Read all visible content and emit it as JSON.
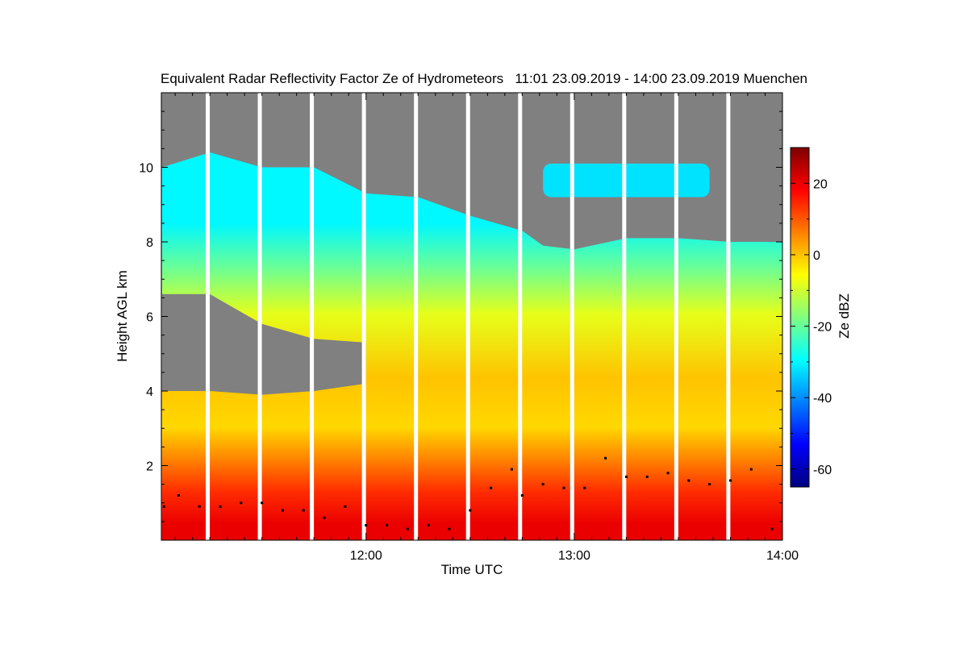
{
  "chart_data": {
    "type": "heatmap",
    "title": "Equivalent Radar Reflectivity Factor Ze of Hydrometeors   11:01 23.09.2019 - 14:00 23.09.2019 Muenchen",
    "xlabel": "Time UTC",
    "ylabel": "Height AGL km",
    "x_range_hours": [
      11.017,
      14.0
    ],
    "x_ticks": [
      {
        "value": 12.0,
        "label": "12:00"
      },
      {
        "value": 13.0,
        "label": "13:00"
      },
      {
        "value": 14.0,
        "label": "14:00"
      }
    ],
    "ylim": [
      0,
      12
    ],
    "y_ticks": [
      {
        "value": 2,
        "label": "2"
      },
      {
        "value": 4,
        "label": "4"
      },
      {
        "value": 6,
        "label": "6"
      },
      {
        "value": 8,
        "label": "8"
      },
      {
        "value": 10,
        "label": "10"
      }
    ],
    "colorbar": {
      "label": "Ze dBZ",
      "range": [
        -65,
        30
      ],
      "ticks": [
        {
          "value": 20,
          "label": "20"
        },
        {
          "value": 0,
          "label": "0"
        },
        {
          "value": -20,
          "label": "-20"
        },
        {
          "value": -40,
          "label": "-40"
        },
        {
          "value": -60,
          "label": "-60"
        }
      ],
      "colormap": [
        "#00007f",
        "#0000ff",
        "#0080ff",
        "#00ffff",
        "#80ff80",
        "#ffff00",
        "#ff8000",
        "#ff0000",
        "#7f0000"
      ]
    },
    "no_echo_color": "#808080",
    "data_gaps_hours": [
      11.24,
      11.49,
      11.74,
      11.99,
      12.24,
      12.49,
      12.74,
      12.99,
      13.24,
      13.49,
      13.74
    ],
    "cloud_top_km": [
      [
        11.02,
        10.0
      ],
      [
        11.25,
        10.4
      ],
      [
        11.5,
        10.0
      ],
      [
        11.75,
        10.0
      ],
      [
        12.0,
        9.3
      ],
      [
        12.25,
        9.2
      ],
      [
        12.5,
        8.7
      ],
      [
        12.75,
        8.3
      ],
      [
        12.85,
        7.9
      ],
      [
        13.0,
        7.8
      ],
      [
        13.25,
        8.1
      ],
      [
        13.5,
        8.1
      ],
      [
        13.75,
        8.0
      ],
      [
        14.0,
        8.0
      ]
    ],
    "clear_layer_bottom_km": [
      [
        11.02,
        4.0
      ],
      [
        11.25,
        4.0
      ],
      [
        11.5,
        3.9
      ],
      [
        11.75,
        4.0
      ],
      [
        12.0,
        4.2
      ]
    ],
    "clear_layer_top_km": [
      [
        11.02,
        6.6
      ],
      [
        11.25,
        6.6
      ],
      [
        11.5,
        5.8
      ],
      [
        11.75,
        5.4
      ],
      [
        12.0,
        5.3
      ]
    ],
    "upper_cloud_band_km": {
      "start_hour": 12.85,
      "end_hour": 13.65,
      "base": 9.2,
      "top": 10.1
    },
    "ze_profile_dbz": [
      {
        "height_km": 0.5,
        "ze": 20
      },
      {
        "height_km": 1.5,
        "ze": 14
      },
      {
        "height_km": 2.5,
        "ze": 6
      },
      {
        "height_km": 3.5,
        "ze": -2
      },
      {
        "height_km": 5.0,
        "ze": 0
      },
      {
        "height_km": 7.0,
        "ze": -8
      },
      {
        "height_km": 8.5,
        "ze": -20
      },
      {
        "height_km": 9.8,
        "ze": -30
      }
    ],
    "cloud_base_km": [
      [
        11.03,
        0.9
      ],
      [
        11.1,
        1.2
      ],
      [
        11.2,
        0.9
      ],
      [
        11.3,
        0.9
      ],
      [
        11.4,
        1.0
      ],
      [
        11.5,
        1.0
      ],
      [
        11.6,
        0.8
      ],
      [
        11.7,
        0.8
      ],
      [
        11.8,
        0.6
      ],
      [
        11.9,
        0.9
      ],
      [
        12.0,
        0.4
      ],
      [
        12.1,
        0.4
      ],
      [
        12.2,
        0.3
      ],
      [
        12.3,
        0.4
      ],
      [
        12.4,
        0.3
      ],
      [
        12.5,
        0.8
      ],
      [
        12.6,
        1.4
      ],
      [
        12.7,
        1.9
      ],
      [
        12.75,
        1.2
      ],
      [
        12.85,
        1.5
      ],
      [
        12.95,
        1.4
      ],
      [
        13.05,
        1.4
      ],
      [
        13.15,
        2.2
      ],
      [
        13.25,
        1.7
      ],
      [
        13.35,
        1.7
      ],
      [
        13.45,
        1.8
      ],
      [
        13.55,
        1.6
      ],
      [
        13.65,
        1.5
      ],
      [
        13.75,
        1.6
      ],
      [
        13.85,
        1.9
      ],
      [
        13.95,
        0.3
      ]
    ]
  }
}
